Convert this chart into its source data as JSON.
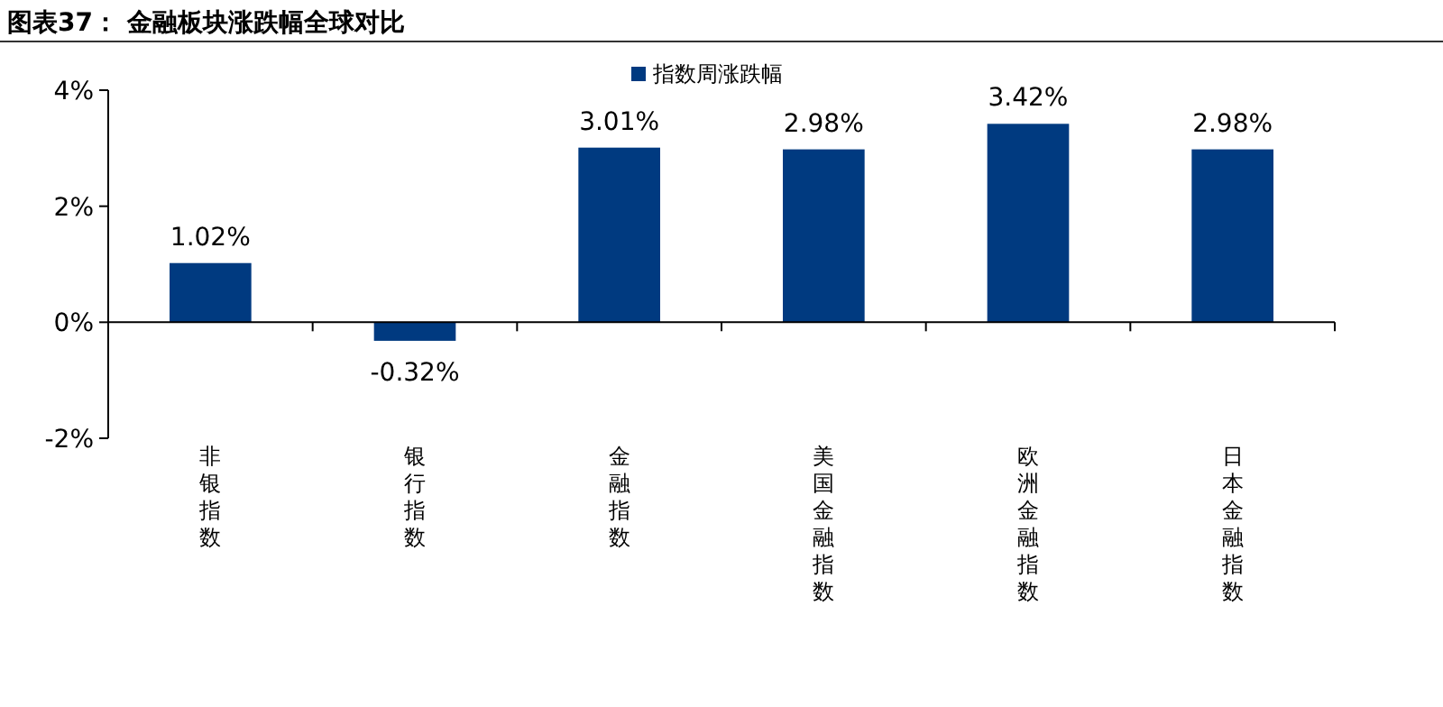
{
  "chart_data": {
    "type": "bar",
    "title": "图表37： 金融板块涨跌幅全球对比",
    "categories": [
      "非银指数",
      "银行指数",
      "金融指数",
      "美国金融指数",
      "欧洲金融指数",
      "日本金融指数"
    ],
    "series": [
      {
        "name": "指数周涨跌幅",
        "color": "#003a80",
        "values": [
          1.02,
          -0.32,
          3.01,
          2.98,
          3.42,
          2.98
        ],
        "value_labels": [
          "1.02%",
          "-0.32%",
          "3.01%",
          "2.98%",
          "3.42%",
          "2.98%"
        ]
      }
    ],
    "ylim": [
      -2,
      4
    ],
    "yticks": [
      {
        "value": -2,
        "label": "-2%"
      },
      {
        "value": 0,
        "label": "0%"
      },
      {
        "value": 2,
        "label": "2%"
      },
      {
        "value": 4,
        "label": "4%"
      }
    ],
    "legend": "top"
  }
}
